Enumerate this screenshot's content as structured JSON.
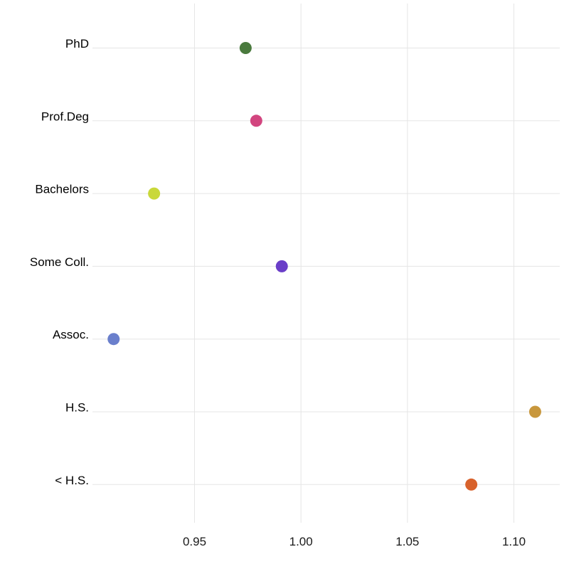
{
  "chart_data": {
    "type": "scatter",
    "title": "",
    "xlabel": "",
    "ylabel": "",
    "categories": [
      "PhD",
      "Prof.Deg",
      "Bachelors",
      "Some Coll.",
      "Assoc.",
      "H.S.",
      "< H.S."
    ],
    "values": [
      0.974,
      0.979,
      0.931,
      0.991,
      0.912,
      1.11,
      1.08
    ],
    "colors": [
      "#4a7a3d",
      "#d2457f",
      "#c9d83a",
      "#6a3ec8",
      "#6a7fcc",
      "#c8973c",
      "#d8622c"
    ],
    "x_ticks": [
      0.95,
      1.0,
      1.05,
      1.1
    ],
    "x_tick_labels": [
      "0.95",
      "1.00",
      "1.05",
      "1.10"
    ],
    "xlim": [
      0.9,
      1.12
    ],
    "grid": true,
    "legend": "none"
  }
}
